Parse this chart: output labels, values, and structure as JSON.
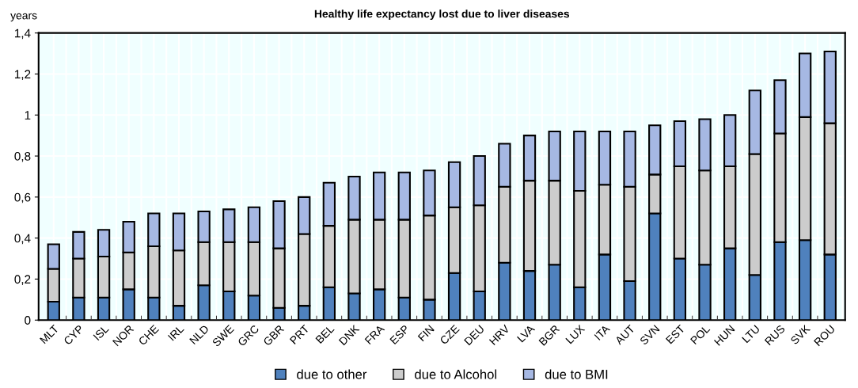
{
  "chart_data": {
    "type": "bar",
    "title": "Healthy life expectancy lost due to liver diseases",
    "ylabel": "years",
    "stacked": true,
    "grid": true,
    "legend": "bottom",
    "categories": [
      "MLT",
      "CYP",
      "ISL",
      "NOR",
      "CHE",
      "IRL",
      "NLD",
      "SWE",
      "GRC",
      "GBR",
      "PRT",
      "BEL",
      "DNK",
      "FRA",
      "ESP",
      "FIN",
      "CZE",
      "DEU",
      "HRV",
      "LVA",
      "BGR",
      "LUX",
      "ITA",
      "AUT",
      "SVN",
      "EST",
      "POL",
      "HUN",
      "LTU",
      "RUS",
      "SVK",
      "ROU"
    ],
    "series": [
      {
        "name": "due to other",
        "color": "#4f81bd",
        "values": [
          0.09,
          0.11,
          0.11,
          0.15,
          0.11,
          0.07,
          0.17,
          0.14,
          0.12,
          0.06,
          0.07,
          0.16,
          0.13,
          0.15,
          0.11,
          0.1,
          0.23,
          0.14,
          0.28,
          0.24,
          0.27,
          0.16,
          0.32,
          0.19,
          0.52,
          0.3,
          0.27,
          0.35,
          0.22,
          0.38,
          0.39,
          0.32
        ]
      },
      {
        "name": "due to Alcohol",
        "color": "#cccccc",
        "values": [
          0.16,
          0.19,
          0.2,
          0.18,
          0.25,
          0.27,
          0.21,
          0.24,
          0.26,
          0.29,
          0.35,
          0.3,
          0.36,
          0.34,
          0.38,
          0.41,
          0.32,
          0.42,
          0.37,
          0.44,
          0.41,
          0.47,
          0.34,
          0.46,
          0.19,
          0.45,
          0.46,
          0.4,
          0.59,
          0.53,
          0.6,
          0.64
        ]
      },
      {
        "name": "due to BMI",
        "color": "#a6b8e3",
        "values": [
          0.12,
          0.13,
          0.13,
          0.15,
          0.16,
          0.18,
          0.15,
          0.16,
          0.17,
          0.23,
          0.18,
          0.21,
          0.21,
          0.23,
          0.23,
          0.22,
          0.22,
          0.24,
          0.21,
          0.22,
          0.24,
          0.29,
          0.26,
          0.27,
          0.24,
          0.22,
          0.25,
          0.25,
          0.31,
          0.26,
          0.31,
          0.35
        ]
      }
    ],
    "ylim": [
      0,
      1.4
    ],
    "yticks": [
      0,
      {
        "value": 0.2,
        "label": "0,2"
      },
      {
        "value": 0.4,
        "label": "0,4"
      },
      {
        "value": 0.6,
        "label": "0,6"
      },
      {
        "value": 0.8,
        "label": "0,8"
      },
      1,
      {
        "value": 1.2,
        "label": "1,2"
      },
      {
        "value": 1.4,
        "label": "1,4"
      }
    ]
  }
}
